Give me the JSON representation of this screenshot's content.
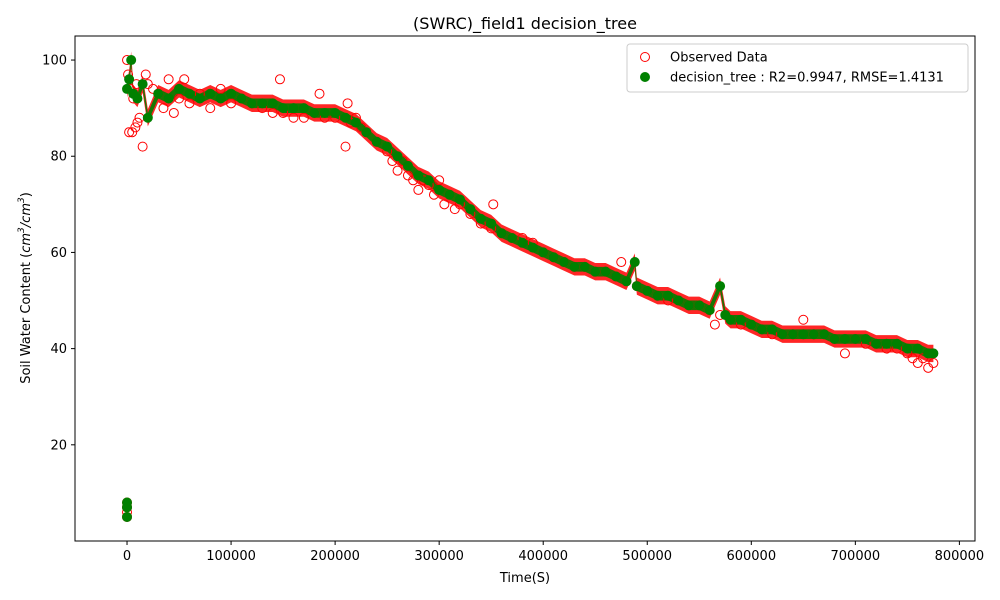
{
  "chart_data": {
    "type": "scatter",
    "title": "(SWRC)_field1 decision_tree",
    "xlabel": "Time(S)",
    "ylabel_prefix": "Soil Water Content (",
    "ylabel_unit_base": "cm",
    "ylabel_unit_exp": "3",
    "ylabel_unit_sep": "/",
    "ylabel_suffix": ")",
    "xlim": [
      -50000,
      815000
    ],
    "ylim": [
      0,
      105
    ],
    "xticks": [
      0,
      100000,
      200000,
      300000,
      400000,
      500000,
      600000,
      700000,
      800000
    ],
    "yticks": [
      20,
      40,
      60,
      80,
      100
    ],
    "grid": false,
    "legend_position": "top-right",
    "legend": [
      "Observed Data",
      "decision_tree : R2=0.9947, RMSE=1.4131"
    ],
    "colors": {
      "observed": "#ff0000",
      "predicted": "#008000"
    },
    "series": [
      {
        "name": "Observed Data",
        "marker": "hollow-circle",
        "points": [
          [
            0,
            100
          ],
          [
            1000,
            97
          ],
          [
            2000,
            85
          ],
          [
            5000,
            85
          ],
          [
            8000,
            86
          ],
          [
            10000,
            87
          ],
          [
            12000,
            88
          ],
          [
            15000,
            82
          ],
          [
            3000,
            94
          ],
          [
            6000,
            92
          ],
          [
            9000,
            95
          ],
          [
            18000,
            97
          ],
          [
            20000,
            95
          ],
          [
            25000,
            94
          ],
          [
            30000,
            93
          ],
          [
            35000,
            90
          ],
          [
            40000,
            96
          ],
          [
            45000,
            89
          ],
          [
            50000,
            92
          ],
          [
            55000,
            96
          ],
          [
            60000,
            91
          ],
          [
            70000,
            93
          ],
          [
            80000,
            90
          ],
          [
            90000,
            94
          ],
          [
            100000,
            91
          ],
          [
            110000,
            92
          ],
          [
            120000,
            91
          ],
          [
            130000,
            90
          ],
          [
            140000,
            89
          ],
          [
            147000,
            96
          ],
          [
            150000,
            89
          ],
          [
            160000,
            88
          ],
          [
            170000,
            88
          ],
          [
            180000,
            89
          ],
          [
            185000,
            93
          ],
          [
            190000,
            88
          ],
          [
            200000,
            88
          ],
          [
            210000,
            82
          ],
          [
            212000,
            91
          ],
          [
            215000,
            87
          ],
          [
            220000,
            88
          ],
          [
            225000,
            86
          ],
          [
            230000,
            85
          ],
          [
            240000,
            83
          ],
          [
            250000,
            81
          ],
          [
            255000,
            79
          ],
          [
            260000,
            77
          ],
          [
            265000,
            79
          ],
          [
            270000,
            76
          ],
          [
            275000,
            75
          ],
          [
            280000,
            73
          ],
          [
            285000,
            75
          ],
          [
            290000,
            74
          ],
          [
            295000,
            72
          ],
          [
            300000,
            75
          ],
          [
            305000,
            70
          ],
          [
            310000,
            72
          ],
          [
            315000,
            69
          ],
          [
            320000,
            70
          ],
          [
            330000,
            68
          ],
          [
            340000,
            66
          ],
          [
            350000,
            65
          ],
          [
            352000,
            70
          ],
          [
            360000,
            64
          ],
          [
            370000,
            63
          ],
          [
            380000,
            63
          ],
          [
            390000,
            62
          ],
          [
            400000,
            60
          ],
          [
            410000,
            59
          ],
          [
            420000,
            58
          ],
          [
            430000,
            57
          ],
          [
            440000,
            57
          ],
          [
            450000,
            56
          ],
          [
            460000,
            56
          ],
          [
            470000,
            55
          ],
          [
            475000,
            58
          ],
          [
            480000,
            54
          ],
          [
            490000,
            53
          ],
          [
            500000,
            52
          ],
          [
            510000,
            51
          ],
          [
            520000,
            50
          ],
          [
            530000,
            50
          ],
          [
            540000,
            49
          ],
          [
            550000,
            49
          ],
          [
            560000,
            48
          ],
          [
            565000,
            45
          ],
          [
            570000,
            47
          ],
          [
            580000,
            46
          ],
          [
            590000,
            45
          ],
          [
            600000,
            45
          ],
          [
            610000,
            44
          ],
          [
            620000,
            43
          ],
          [
            630000,
            43
          ],
          [
            640000,
            43
          ],
          [
            650000,
            46
          ],
          [
            660000,
            43
          ],
          [
            670000,
            43
          ],
          [
            680000,
            42
          ],
          [
            690000,
            39
          ],
          [
            700000,
            42
          ],
          [
            710000,
            41
          ],
          [
            720000,
            41
          ],
          [
            730000,
            40
          ],
          [
            740000,
            40
          ],
          [
            750000,
            39
          ],
          [
            755000,
            38
          ],
          [
            760000,
            37
          ],
          [
            765000,
            38
          ],
          [
            770000,
            36
          ],
          [
            775000,
            37
          ],
          [
            0,
            8
          ],
          [
            0,
            7
          ],
          [
            0,
            6
          ],
          [
            0,
            5
          ]
        ]
      },
      {
        "name": "decision_tree : R2=0.9947, RMSE=1.4131",
        "marker": "filled-circle",
        "points": [
          [
            0,
            94
          ],
          [
            2000,
            96
          ],
          [
            4000,
            100
          ],
          [
            6000,
            93
          ],
          [
            10000,
            92
          ],
          [
            15000,
            95
          ],
          [
            20000,
            88
          ],
          [
            30000,
            93
          ],
          [
            40000,
            92
          ],
          [
            50000,
            94
          ],
          [
            60000,
            93
          ],
          [
            70000,
            92
          ],
          [
            80000,
            93
          ],
          [
            90000,
            92
          ],
          [
            100000,
            93
          ],
          [
            110000,
            92
          ],
          [
            120000,
            91
          ],
          [
            130000,
            91
          ],
          [
            140000,
            91
          ],
          [
            150000,
            90
          ],
          [
            160000,
            90
          ],
          [
            170000,
            90
          ],
          [
            180000,
            89
          ],
          [
            190000,
            89
          ],
          [
            200000,
            89
          ],
          [
            210000,
            88
          ],
          [
            220000,
            87
          ],
          [
            230000,
            85
          ],
          [
            240000,
            83
          ],
          [
            250000,
            82
          ],
          [
            260000,
            80
          ],
          [
            270000,
            78
          ],
          [
            280000,
            76
          ],
          [
            290000,
            75
          ],
          [
            300000,
            73
          ],
          [
            310000,
            72
          ],
          [
            320000,
            71
          ],
          [
            330000,
            69
          ],
          [
            340000,
            67
          ],
          [
            350000,
            66
          ],
          [
            360000,
            64
          ],
          [
            370000,
            63
          ],
          [
            380000,
            62
          ],
          [
            390000,
            61
          ],
          [
            400000,
            60
          ],
          [
            410000,
            59
          ],
          [
            420000,
            58
          ],
          [
            430000,
            57
          ],
          [
            440000,
            57
          ],
          [
            450000,
            56
          ],
          [
            460000,
            56
          ],
          [
            470000,
            55
          ],
          [
            480000,
            54
          ],
          [
            488000,
            58
          ],
          [
            490000,
            53
          ],
          [
            500000,
            52
          ],
          [
            510000,
            51
          ],
          [
            520000,
            51
          ],
          [
            530000,
            50
          ],
          [
            540000,
            49
          ],
          [
            550000,
            49
          ],
          [
            560000,
            48
          ],
          [
            570000,
            53
          ],
          [
            575000,
            47
          ],
          [
            580000,
            46
          ],
          [
            590000,
            46
          ],
          [
            600000,
            45
          ],
          [
            610000,
            44
          ],
          [
            620000,
            44
          ],
          [
            630000,
            43
          ],
          [
            640000,
            43
          ],
          [
            650000,
            43
          ],
          [
            660000,
            43
          ],
          [
            670000,
            43
          ],
          [
            680000,
            42
          ],
          [
            690000,
            42
          ],
          [
            700000,
            42
          ],
          [
            710000,
            42
          ],
          [
            720000,
            41
          ],
          [
            730000,
            41
          ],
          [
            740000,
            41
          ],
          [
            750000,
            40
          ],
          [
            760000,
            40
          ],
          [
            770000,
            39
          ],
          [
            775000,
            39
          ],
          [
            0,
            8
          ],
          [
            0,
            7
          ],
          [
            0,
            5
          ]
        ]
      }
    ]
  }
}
